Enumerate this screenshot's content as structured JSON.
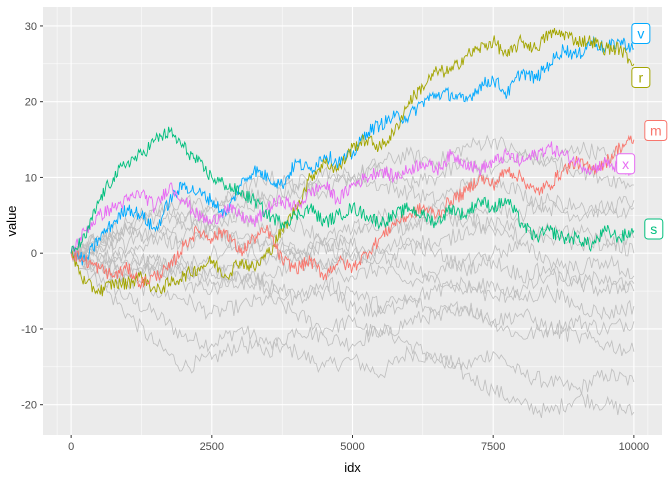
{
  "chart_data": {
    "type": "line",
    "xlabel": "idx",
    "ylabel": "value",
    "xlim": [
      -500,
      10500
    ],
    "ylim": [
      -24,
      32.5
    ],
    "x_ticks": [
      0,
      2500,
      5000,
      7500,
      10000
    ],
    "x_tick_labels": [
      "0",
      "2500",
      "5000",
      "7500",
      "10000"
    ],
    "y_ticks": [
      -20,
      -10,
      0,
      10,
      20,
      30
    ],
    "y_tick_labels": [
      "-20",
      "-10",
      "0",
      "10",
      "20",
      "30"
    ],
    "grid": true,
    "legend": "none",
    "background_color": "#EBEBEB",
    "grid_color": "#FFFFFF",
    "gray_series_color": "#BEBEBE",
    "gray_series": [
      {
        "x": [
          0,
          500,
          1000,
          1500,
          2000,
          2500,
          3000,
          3500,
          4000,
          4500,
          5000,
          5500,
          6000,
          6500,
          7000,
          7500,
          8000,
          8500,
          9000,
          9500,
          10000
        ],
        "values": [
          0,
          -3,
          -6,
          -8,
          -11,
          -12,
          -10,
          -12,
          -13,
          -15,
          -14,
          -16,
          -13,
          -14,
          -15,
          -13,
          -16,
          -17,
          -18,
          -16,
          -17
        ]
      },
      {
        "x": [
          0,
          500,
          1000,
          1500,
          2000,
          2500,
          3000,
          3500,
          4000,
          4500,
          5000,
          5500,
          6000,
          6500,
          7000,
          7500,
          8000,
          8500,
          9000,
          9500,
          10000
        ],
        "values": [
          0,
          -4,
          -8,
          -12,
          -15,
          -14,
          -12,
          -13,
          -10,
          -11,
          -12,
          -10,
          -12,
          -14,
          -16,
          -18,
          -20,
          -21,
          -19,
          -20,
          -21
        ]
      },
      {
        "x": [
          0,
          500,
          1000,
          1500,
          2000,
          2500,
          3000,
          3500,
          4000,
          4500,
          5000,
          5500,
          6000,
          6500,
          7000,
          7500,
          8000,
          8500,
          9000,
          9500,
          10000
        ],
        "values": [
          0,
          -2,
          -4,
          -5,
          -6,
          -8,
          -7,
          -6,
          -8,
          -10,
          -9,
          -11,
          -9,
          -8,
          -7,
          -9,
          -11,
          -10,
          -9,
          -10,
          -9
        ]
      },
      {
        "x": [
          0,
          500,
          1000,
          1500,
          2000,
          2500,
          3000,
          3500,
          4000,
          4500,
          5000,
          5500,
          6000,
          6500,
          7000,
          7500,
          8000,
          8500,
          9000,
          9500,
          10000
        ],
        "values": [
          0,
          2,
          4,
          6,
          5,
          4,
          6,
          7,
          8,
          9,
          10,
          12,
          13,
          12,
          14,
          15,
          13,
          12,
          14,
          13,
          12
        ]
      },
      {
        "x": [
          0,
          500,
          1000,
          1500,
          2000,
          2500,
          3000,
          3500,
          4000,
          4500,
          5000,
          5500,
          6000,
          6500,
          7000,
          7500,
          8000,
          8500,
          9000,
          9500,
          10000
        ],
        "values": [
          0,
          1,
          3,
          5,
          7,
          6,
          8,
          10,
          9,
          11,
          10,
          9,
          8,
          7,
          9,
          10,
          8,
          6,
          5,
          6,
          7
        ]
      },
      {
        "x": [
          0,
          500,
          1000,
          1500,
          2000,
          2500,
          3000,
          3500,
          4000,
          4500,
          5000,
          5500,
          6000,
          6500,
          7000,
          7500,
          8000,
          8500,
          9000,
          9500,
          10000
        ],
        "values": [
          0,
          -1,
          0,
          2,
          1,
          3,
          2,
          1,
          0,
          -2,
          -3,
          -2,
          -4,
          -3,
          -5,
          -4,
          -6,
          -5,
          -7,
          -8,
          -7
        ]
      },
      {
        "x": [
          0,
          500,
          1000,
          1500,
          2000,
          2500,
          3000,
          3500,
          4000,
          4500,
          5000,
          5500,
          6000,
          6500,
          7000,
          7500,
          8000,
          8500,
          9000,
          9500,
          10000
        ],
        "values": [
          0,
          2,
          1,
          3,
          2,
          4,
          5,
          3,
          4,
          2,
          3,
          5,
          4,
          6,
          5,
          3,
          4,
          2,
          3,
          1,
          2
        ]
      },
      {
        "x": [
          0,
          500,
          1000,
          1500,
          2000,
          2500,
          3000,
          3500,
          4000,
          4500,
          5000,
          5500,
          6000,
          6500,
          7000,
          7500,
          8000,
          8500,
          9000,
          9500,
          10000
        ],
        "values": [
          0,
          -2,
          -1,
          -3,
          -2,
          -4,
          -3,
          -5,
          -6,
          -4,
          -5,
          -7,
          -6,
          -8,
          -7,
          -9,
          -8,
          -10,
          -11,
          -12,
          -13
        ]
      },
      {
        "x": [
          0,
          500,
          1000,
          1500,
          2000,
          2500,
          3000,
          3500,
          4000,
          4500,
          5000,
          5500,
          6000,
          6500,
          7000,
          7500,
          8000,
          8500,
          9000,
          9500,
          10000
        ],
        "values": [
          0,
          1,
          3,
          2,
          4,
          3,
          1,
          2,
          0,
          1,
          -1,
          0,
          2,
          1,
          3,
          4,
          2,
          3,
          1,
          2,
          0
        ]
      },
      {
        "x": [
          0,
          500,
          1000,
          1500,
          2000,
          2500,
          3000,
          3500,
          4000,
          4500,
          5000,
          5500,
          6000,
          6500,
          7000,
          7500,
          8000,
          8500,
          9000,
          9500,
          10000
        ],
        "values": [
          0,
          -1,
          -3,
          -2,
          -4,
          -5,
          -3,
          -4,
          -6,
          -5,
          -7,
          -8,
          -6,
          -5,
          -4,
          -6,
          -5,
          -3,
          -4,
          -5,
          -4
        ]
      },
      {
        "x": [
          0,
          500,
          1000,
          1500,
          2000,
          2500,
          3000,
          3500,
          4000,
          4500,
          5000,
          5500,
          6000,
          6500,
          7000,
          7500,
          8000,
          8500,
          9000,
          9500,
          10000
        ],
        "values": [
          0,
          2,
          3,
          5,
          4,
          6,
          8,
          7,
          9,
          8,
          10,
          11,
          9,
          10,
          12,
          11,
          13,
          12,
          11,
          10,
          9
        ]
      },
      {
        "x": [
          0,
          500,
          1000,
          1500,
          2000,
          2500,
          3000,
          3500,
          4000,
          4500,
          5000,
          5500,
          6000,
          6500,
          7000,
          7500,
          8000,
          8500,
          9000,
          9500,
          10000
        ],
        "values": [
          0,
          0,
          -2,
          -1,
          -3,
          -2,
          -4,
          -3,
          -1,
          -2,
          0,
          -1,
          1,
          0,
          -2,
          -1,
          -3,
          -2,
          -4,
          -3,
          -5
        ]
      },
      {
        "x": [
          0,
          500,
          1000,
          1500,
          2000,
          2500,
          3000,
          3500,
          4000,
          4500,
          5000,
          5500,
          6000,
          6500,
          7000,
          7500,
          8000,
          8500,
          9000,
          9500,
          10000
        ],
        "values": [
          0,
          -2,
          -3,
          -1,
          -2,
          0,
          1,
          -1,
          0,
          2,
          1,
          0,
          -2,
          -3,
          -1,
          0,
          1,
          -1,
          -2,
          -1,
          -3
        ]
      },
      {
        "x": [
          0,
          500,
          1000,
          1500,
          2000,
          2500,
          3000,
          3500,
          4000,
          4500,
          5000,
          5500,
          6000,
          6500,
          7000,
          7500,
          8000,
          8500,
          9000,
          9500,
          10000
        ],
        "values": [
          0,
          1,
          0,
          -2,
          -1,
          -3,
          -2,
          0,
          -1,
          1,
          2,
          4,
          3,
          5,
          4,
          6,
          5,
          7,
          6,
          5,
          6
        ]
      }
    ],
    "series": [
      {
        "name": "v",
        "color": "#00A9FF",
        "x": [
          0,
          250,
          500,
          750,
          1000,
          1250,
          1500,
          1750,
          2000,
          2250,
          2500,
          2750,
          3000,
          3250,
          3500,
          3750,
          4000,
          4250,
          4500,
          4750,
          5000,
          5250,
          5500,
          5750,
          6000,
          6250,
          6500,
          6750,
          7000,
          7250,
          7500,
          7750,
          8000,
          8250,
          8500,
          8750,
          9000,
          9250,
          9500,
          9750,
          10000
        ],
        "values": [
          0,
          -1,
          2,
          4,
          6,
          5,
          3,
          7,
          9,
          8,
          7,
          5,
          9,
          11,
          10,
          9,
          12,
          11,
          13,
          12,
          13,
          16,
          17,
          18,
          18,
          20,
          21,
          21,
          20,
          22,
          23,
          21,
          24,
          23,
          25,
          27,
          26,
          28,
          27,
          28,
          27
        ]
      },
      {
        "name": "r",
        "color": "#A3A500",
        "x": [
          0,
          250,
          500,
          750,
          1000,
          1250,
          1500,
          1750,
          2000,
          2250,
          2500,
          2750,
          3000,
          3250,
          3500,
          3750,
          4000,
          4250,
          4500,
          4750,
          5000,
          5250,
          5500,
          5750,
          6000,
          6250,
          6500,
          6750,
          7000,
          7250,
          7500,
          7750,
          8000,
          8250,
          8500,
          8750,
          9000,
          9250,
          9500,
          9750,
          10000
        ],
        "values": [
          0,
          -4,
          -5,
          -4,
          -4,
          -3,
          -5,
          -4,
          -3,
          -2,
          -1,
          -3,
          -1,
          -2,
          0,
          3,
          6,
          10,
          12,
          11,
          14,
          15,
          14,
          16,
          20,
          22,
          24,
          24,
          26,
          27,
          28,
          26,
          28,
          27,
          29,
          29,
          28,
          28,
          27,
          27,
          25
        ]
      },
      {
        "name": "m",
        "color": "#F8766D",
        "x": [
          0,
          250,
          500,
          750,
          1000,
          1250,
          1500,
          1750,
          2000,
          2250,
          2500,
          2750,
          3000,
          3250,
          3500,
          3750,
          4000,
          4250,
          4500,
          4750,
          5000,
          5250,
          5500,
          5750,
          6000,
          6250,
          6500,
          6750,
          7000,
          7250,
          7500,
          7750,
          8000,
          8250,
          8500,
          8750,
          9000,
          9250,
          9500,
          9750,
          10000
        ],
        "values": [
          0,
          -1,
          -2,
          -3,
          -2,
          -4,
          -3,
          -2,
          1,
          3,
          2,
          3,
          0,
          2,
          3,
          -1,
          -2,
          -1,
          -3,
          -1,
          -2,
          0,
          2,
          4,
          5,
          6,
          5,
          7,
          8,
          10,
          9,
          11,
          10,
          8,
          9,
          11,
          12,
          11,
          12,
          14,
          15
        ]
      },
      {
        "name": "x",
        "color": "#E76BF3",
        "x": [
          0,
          250,
          500,
          750,
          1000,
          1250,
          1500,
          1750,
          2000,
          2250,
          2500,
          2750,
          3000,
          3250,
          3500,
          3750,
          4000,
          4250,
          4500,
          4750,
          5000,
          5250,
          5500,
          5750,
          6000,
          6250,
          6500,
          6750,
          7000,
          7250,
          7500,
          7750,
          8000,
          8250,
          8500,
          8750,
          9000,
          9250,
          9500,
          9750,
          10000
        ],
        "values": [
          0,
          3,
          5,
          6,
          7,
          8,
          6,
          9,
          7,
          5,
          4,
          6,
          5,
          4,
          6,
          7,
          6,
          8,
          9,
          7,
          9,
          10,
          11,
          10,
          11,
          12,
          11,
          13,
          12,
          11,
          12,
          13,
          12,
          13,
          14,
          13,
          12,
          11,
          12,
          11,
          11
        ]
      },
      {
        "name": "s",
        "color": "#00BF7D",
        "x": [
          0,
          250,
          500,
          750,
          1000,
          1250,
          1500,
          1750,
          2000,
          2250,
          2500,
          2750,
          3000,
          3250,
          3500,
          3750,
          4000,
          4250,
          4500,
          4750,
          5000,
          5250,
          5500,
          5750,
          6000,
          6250,
          6500,
          6750,
          7000,
          7250,
          7500,
          7750,
          8000,
          8250,
          8500,
          8750,
          9000,
          9250,
          9500,
          9750,
          10000
        ],
        "values": [
          0,
          2,
          7,
          10,
          12,
          13,
          15,
          16,
          14,
          12,
          10,
          9,
          8,
          7,
          5,
          4,
          5,
          6,
          4,
          5,
          6,
          5,
          4,
          5,
          6,
          5,
          4,
          6,
          5,
          7,
          6,
          7,
          4,
          2,
          3,
          2,
          2,
          1,
          3,
          2,
          3
        ]
      }
    ],
    "end_labels": [
      {
        "text": "v",
        "x": 10000,
        "y": 29,
        "color": "#00A9FF"
      },
      {
        "text": "r",
        "x": 10000,
        "y": 23.2,
        "color": "#A3A500"
      },
      {
        "text": "m",
        "x": 10230,
        "y": 16.2,
        "color": "#F8766D"
      },
      {
        "text": "x",
        "x": 9730,
        "y": 11.8,
        "color": "#E76BF3"
      },
      {
        "text": "s",
        "x": 10230,
        "y": 3.2,
        "color": "#00BF7D"
      }
    ]
  }
}
